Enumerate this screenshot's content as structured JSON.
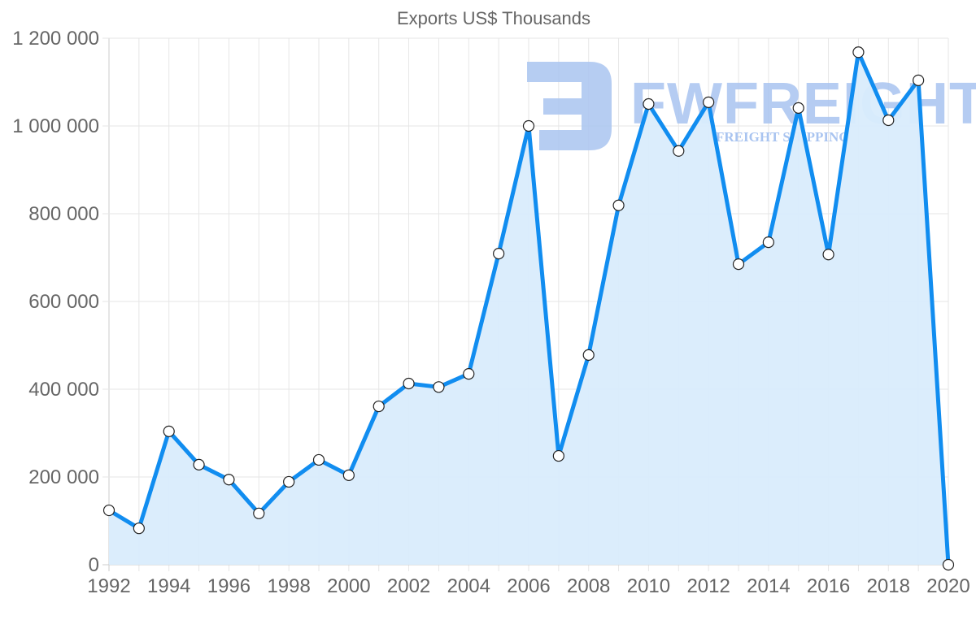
{
  "chart_data": {
    "type": "line",
    "title": "Exports US$ Thousands",
    "xlabel": "",
    "ylabel": "",
    "x": [
      1992,
      1993,
      1994,
      1995,
      1996,
      1997,
      1998,
      1999,
      2000,
      2001,
      2002,
      2003,
      2004,
      2005,
      2006,
      2007,
      2008,
      2009,
      2010,
      2011,
      2012,
      2013,
      2014,
      2015,
      2016,
      2017,
      2018,
      2019,
      2020
    ],
    "series": [
      {
        "name": "Exports US$ Thousands",
        "values": [
          124000,
          83000,
          304000,
          228000,
          194000,
          117000,
          189000,
          239000,
          204000,
          361000,
          413000,
          405000,
          435000,
          709000,
          1000000,
          248000,
          478000,
          819000,
          1050000,
          943000,
          1054000,
          685000,
          735000,
          1041000,
          707000,
          1168000,
          1013000,
          1104000,
          0
        ],
        "line_color": "#118df0",
        "fill_color": "#d9ecfc",
        "fill": true
      }
    ],
    "ylim": [
      0,
      1200000
    ],
    "xlim": [
      1992,
      2020
    ],
    "y_ticks": [
      "0",
      "200 000",
      "400 000",
      "600 000",
      "800 000",
      "1 000 000",
      "1 200 000"
    ],
    "x_ticks": [
      "1992",
      "1994",
      "1996",
      "1998",
      "2000",
      "2002",
      "2004",
      "2006",
      "2008",
      "2010",
      "2012",
      "2014",
      "2016",
      "2018",
      "2020"
    ],
    "grid": true,
    "legend": "none"
  },
  "watermark": {
    "brand": "FWFREIGHT",
    "tagline": "FREIGHT SHIPPING"
  }
}
